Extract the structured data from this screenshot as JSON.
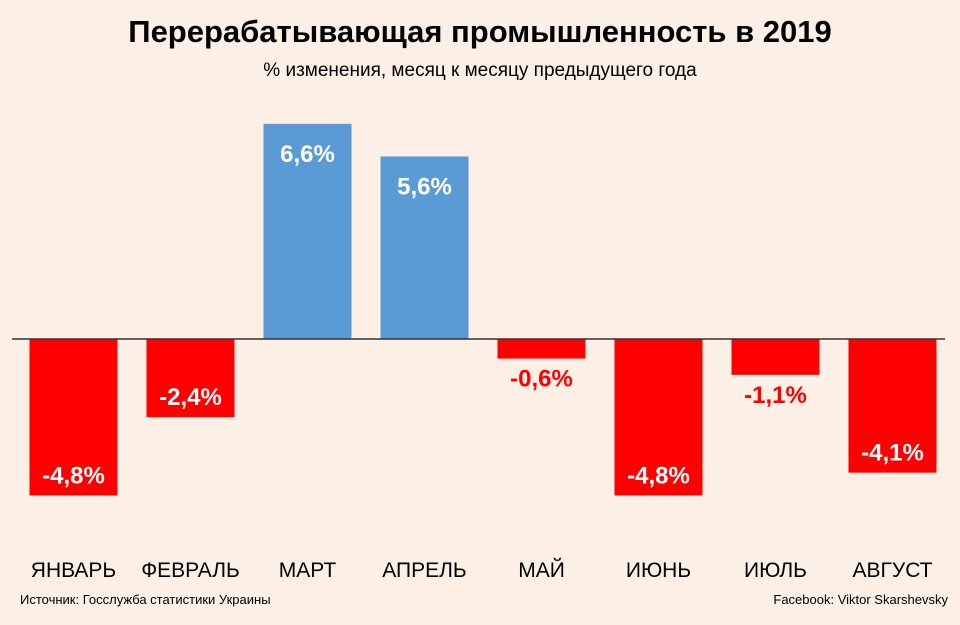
{
  "header": {
    "title": "Перерабатывающая промышленность в 2019",
    "subtitle": "% изменения, месяц к месяцу предыдущего года"
  },
  "footer": {
    "source": "Источник: Госслужба статистики Украины",
    "credit": "Facebook: Viktor Skarshevsky"
  },
  "colors": {
    "background": "#fbefe6",
    "positive": "#5b9bd5",
    "negative": "#ff0000",
    "axis": "#333333"
  },
  "chart_data": {
    "type": "bar",
    "title": "Перерабатывающая промышленность в 2019",
    "subtitle": "% изменения, месяц к месяцу предыдущего года",
    "categories": [
      "ЯНВАРЬ",
      "ФЕВРАЛЬ",
      "МАРТ",
      "АПРЕЛЬ",
      "МАЙ",
      "ИЮНЬ",
      "ИЮЛЬ",
      "АВГУСТ"
    ],
    "values": [
      -4.8,
      -2.4,
      6.6,
      5.6,
      -0.6,
      -4.8,
      -1.1,
      -4.1
    ],
    "data_labels": [
      "-4,8%",
      "-2,4%",
      "6,6%",
      "5,6%",
      "-0,6%",
      "-4,8%",
      "-1,1%",
      "-4,1%"
    ],
    "xlabel": "",
    "ylabel": "",
    "grid": false,
    "legend": "none"
  }
}
